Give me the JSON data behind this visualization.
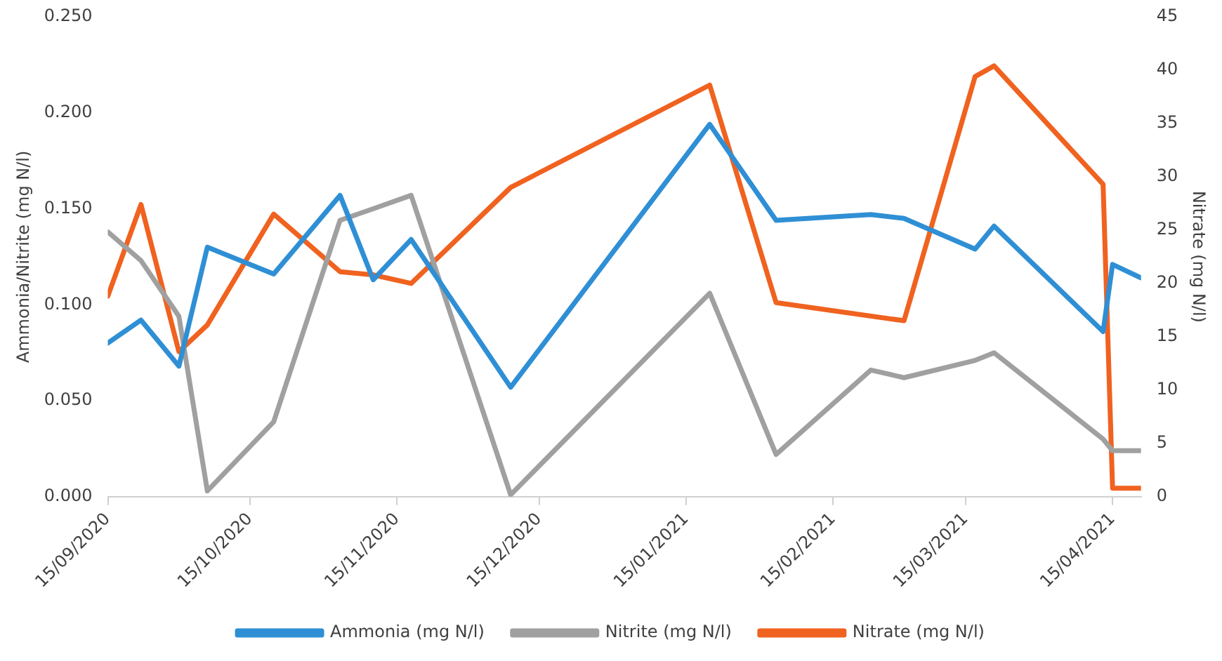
{
  "chart_data": {
    "type": "line",
    "ylabel": "Ammonia/Nitrite (mg N/l)",
    "y2label": "Nitrate (mg N/l)",
    "x": [
      "2020-09-15",
      "2020-09-22",
      "2020-09-30",
      "2020-10-06",
      "2020-10-20",
      "2020-11-03",
      "2020-11-10",
      "2020-11-18",
      "2020-12-09",
      "2021-01-20",
      "2021-02-03",
      "2021-02-23",
      "2021-03-02",
      "2021-03-17",
      "2021-03-21",
      "2021-04-13",
      "2021-04-15",
      "2021-04-21"
    ],
    "series": [
      {
        "name": "Ammonia (mg N/l)",
        "color": "#2f8fd5",
        "values": [
          0.08,
          0.092,
          0.068,
          0.13,
          0.116,
          0.157,
          0.113,
          0.134,
          0.057,
          0.194,
          0.144,
          0.147,
          0.145,
          0.129,
          0.141,
          0.086,
          0.121,
          0.114
        ]
      },
      {
        "name": "Nitrite (mg N/l)",
        "color": "#a0a0a0",
        "values": [
          0.138,
          0.123,
          0.094,
          0.003,
          0.039,
          0.144,
          0.15,
          0.157,
          0.001,
          0.106,
          0.022,
          0.066,
          0.062,
          0.071,
          0.075,
          0.03,
          0.024,
          0.024
        ]
      },
      {
        "name": "Nitrate (mg N/l)",
        "color": "#f0621f",
        "axis": "y2",
        "values": [
          18.8,
          27.4,
          13.6,
          16.1,
          26.5,
          21.1,
          20.8,
          20.0,
          29.0,
          38.6,
          18.2,
          null,
          16.5,
          39.4,
          40.4,
          29.3,
          0.8,
          0.8
        ]
      }
    ],
    "xlim": [
      "2020-09-15",
      "2021-04-21"
    ],
    "xticks": [
      {
        "value": "2020-09-15",
        "label": "15/09/2020"
      },
      {
        "value": "2020-10-15",
        "label": "15/10/2020"
      },
      {
        "value": "2020-11-15",
        "label": "15/11/2020"
      },
      {
        "value": "2020-12-15",
        "label": "15/12/2020"
      },
      {
        "value": "2021-01-15",
        "label": "15/01/2021"
      },
      {
        "value": "2021-02-15",
        "label": "15/02/2021"
      },
      {
        "value": "2021-03-15",
        "label": "15/03/2021"
      },
      {
        "value": "2021-04-15",
        "label": "15/04/2021"
      }
    ],
    "ylim": [
      0,
      0.25
    ],
    "yticks": [
      {
        "value": 0,
        "label": "0.000"
      },
      {
        "value": 0.05,
        "label": "0.050"
      },
      {
        "value": 0.1,
        "label": "0.100"
      },
      {
        "value": 0.15,
        "label": "0.150"
      },
      {
        "value": 0.2,
        "label": "0.200"
      },
      {
        "value": 0.25,
        "label": "0.250"
      }
    ],
    "y2lim": [
      0,
      45
    ],
    "y2ticks": [
      0,
      5,
      10,
      15,
      20,
      25,
      30,
      35,
      40,
      45
    ],
    "grid": false,
    "legend": "bottom",
    "marker": "none",
    "line_style": "solid"
  }
}
